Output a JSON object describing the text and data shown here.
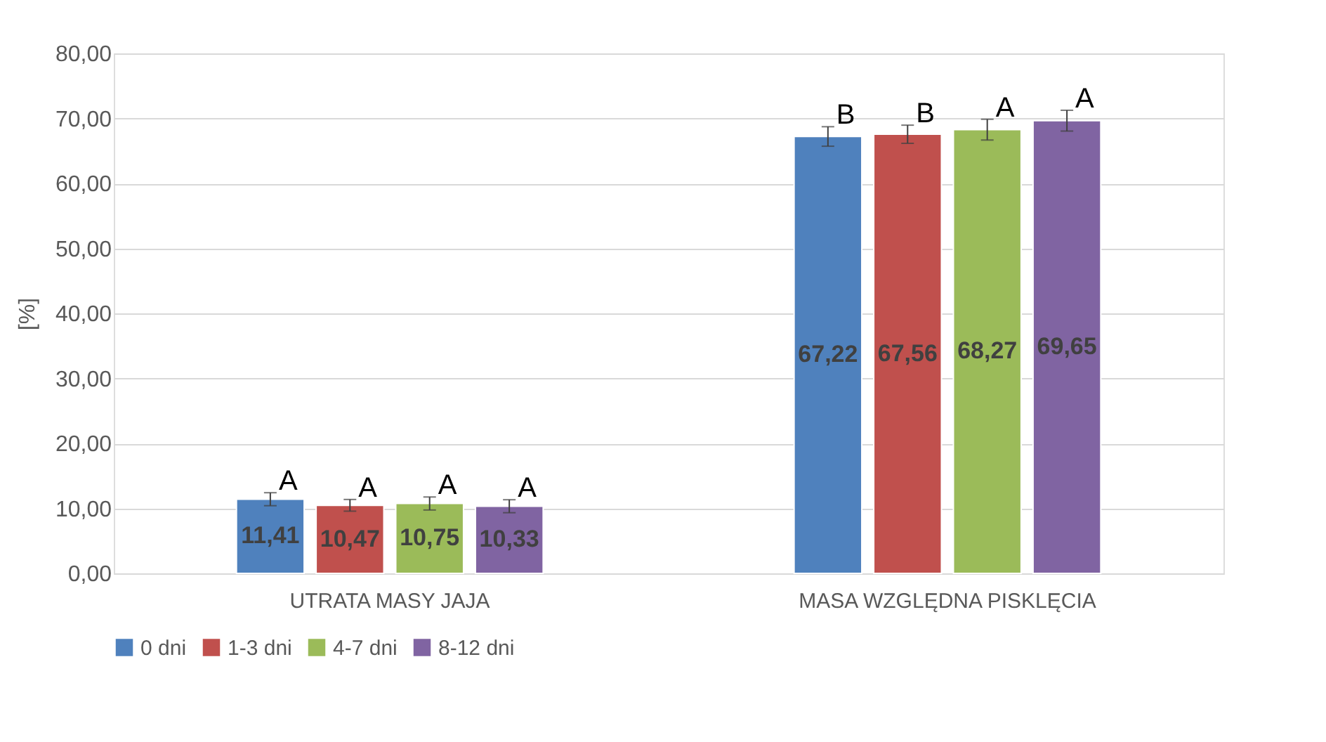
{
  "chart_data": {
    "type": "bar",
    "ylabel": "[%]",
    "categories": [
      "UTRATA MASY JAJA",
      "MASA WZGLĘDNA PISKLĘCIA"
    ],
    "series": [
      {
        "name": "0 dni",
        "color": "#4f81bd",
        "values": [
          11.41,
          67.22
        ],
        "errors": [
          1.0,
          1.5
        ],
        "value_labels": [
          "11,41",
          "67,22"
        ]
      },
      {
        "name": "1-3 dni",
        "color": "#c0504d",
        "values": [
          10.47,
          67.56
        ],
        "errors": [
          0.9,
          1.4
        ],
        "value_labels": [
          "10,47",
          "67,56"
        ]
      },
      {
        "name": "4-7 dni",
        "color": "#9bbb59",
        "values": [
          10.75,
          68.27
        ],
        "errors": [
          1.0,
          1.6
        ],
        "value_labels": [
          "10,75",
          "68,27"
        ]
      },
      {
        "name": "8-12 dni",
        "color": "#8064a2",
        "values": [
          10.33,
          69.65
        ],
        "errors": [
          1.0,
          1.6
        ],
        "value_labels": [
          "10,33",
          "69,65"
        ]
      }
    ],
    "annotations": [
      "A",
      "A",
      "A",
      "A",
      "B",
      "B",
      "A",
      "A"
    ],
    "ylim": [
      0,
      80
    ],
    "yticks": [
      {
        "value": 0,
        "label": "0,00"
      },
      {
        "value": 10,
        "label": "10,00"
      },
      {
        "value": 20,
        "label": "20,00"
      },
      {
        "value": 30,
        "label": "30,00"
      },
      {
        "value": 40,
        "label": "40,00"
      },
      {
        "value": 50,
        "label": "50,00"
      },
      {
        "value": 60,
        "label": "60,00"
      },
      {
        "value": 70,
        "label": "70,00"
      },
      {
        "value": 80,
        "label": "80,00"
      }
    ],
    "grid": "y",
    "legend": "bottom"
  }
}
